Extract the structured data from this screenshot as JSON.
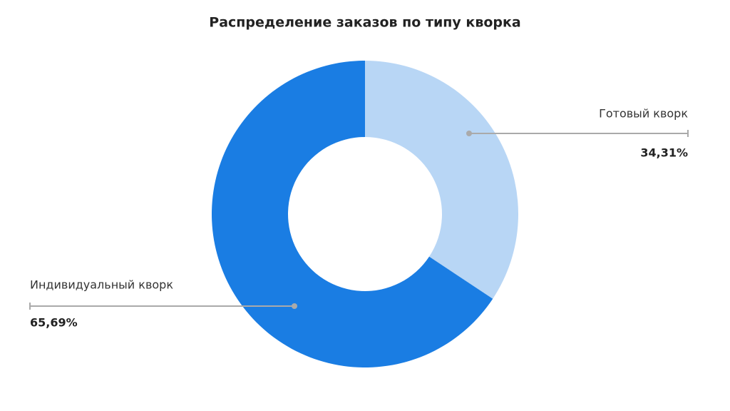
{
  "chart_data": {
    "type": "donut",
    "title": "Распределение заказов по типу кворка",
    "categories": [
      "Готовый кворк",
      "Индивидуальный кворк"
    ],
    "values": [
      34.31,
      65.69
    ],
    "value_labels": [
      "34,31%",
      "65,69%"
    ],
    "colors": [
      "#b8d6f5",
      "#1a7de3"
    ]
  }
}
